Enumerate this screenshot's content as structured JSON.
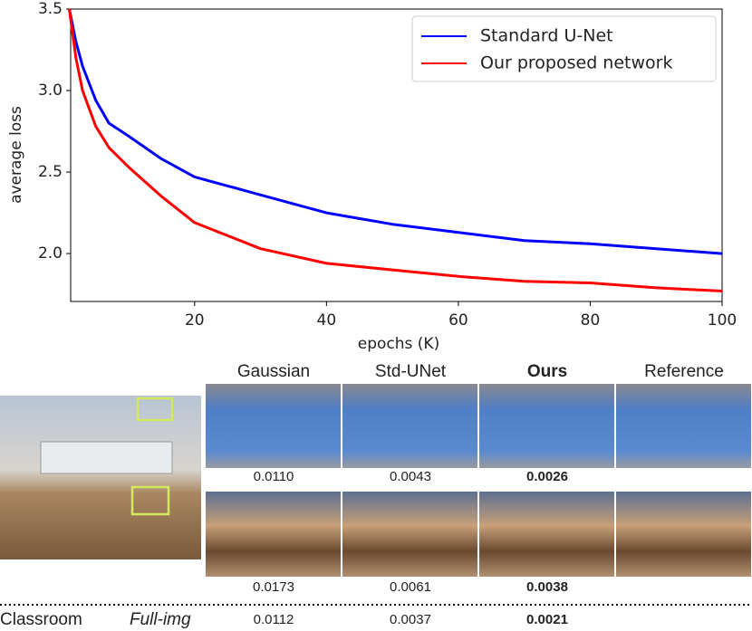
{
  "chart_data": {
    "type": "line",
    "xlabel": "epochs (K)",
    "ylabel": "average loss",
    "x": [
      1,
      2,
      3,
      5,
      7,
      10,
      15,
      20,
      30,
      40,
      50,
      60,
      70,
      80,
      90,
      100
    ],
    "series": [
      {
        "name": "Standard U-Net",
        "color": "#0000ff",
        "values": [
          3.5,
          3.3,
          3.15,
          2.94,
          2.8,
          2.72,
          2.58,
          2.47,
          2.36,
          2.25,
          2.18,
          2.13,
          2.08,
          2.06,
          2.03,
          2.0
        ]
      },
      {
        "name": "Our proposed network",
        "color": "#ff0000",
        "values": [
          3.5,
          3.2,
          3.0,
          2.78,
          2.65,
          2.53,
          2.35,
          2.19,
          2.03,
          1.94,
          1.9,
          1.86,
          1.83,
          1.82,
          1.79,
          1.77
        ]
      }
    ],
    "xlim": [
      1.2,
      100
    ],
    "ylim": [
      1.706,
      3.5
    ],
    "xticks": [
      20,
      40,
      60,
      80,
      100
    ],
    "yticks": [
      {
        "value": 2,
        "label": "2.0"
      },
      2.5,
      {
        "value": 3,
        "label": "3.0"
      },
      3.5
    ],
    "grid": false,
    "legend": "upper right"
  },
  "comparison": {
    "columns": [
      "Gaussian",
      "Std-UNet",
      "Ours",
      "Reference"
    ],
    "rows": [
      [
        "0.0110",
        "0.0043",
        "0.0026"
      ],
      [
        "0.0173",
        "0.0061",
        "0.0038"
      ]
    ],
    "footer": {
      "scene": "Classroom",
      "label": "Full-img",
      "values": [
        "0.0112",
        "0.0037",
        "0.0021"
      ]
    }
  }
}
